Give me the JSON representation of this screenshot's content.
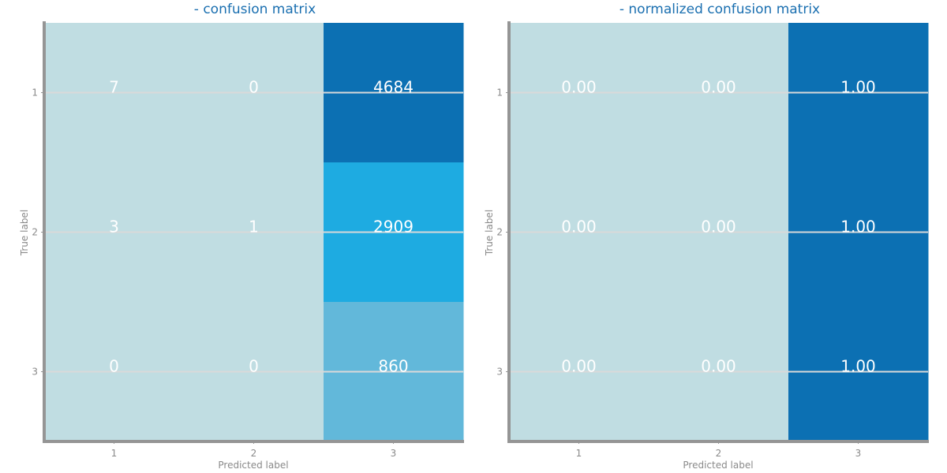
{
  "chart_data": [
    {
      "type": "heatmap",
      "title": "- confusion matrix",
      "xlabel": "Predicted label",
      "ylabel": "True label",
      "x_tick_labels": [
        "1",
        "2",
        "3"
      ],
      "y_tick_labels": [
        "1",
        "2",
        "3"
      ],
      "values": [
        [
          7,
          0,
          4684
        ],
        [
          3,
          1,
          2909
        ],
        [
          0,
          0,
          860
        ]
      ],
      "cell_labels": [
        [
          "7",
          "0",
          "4684"
        ],
        [
          "3",
          "1",
          "2909"
        ],
        [
          "0",
          "0",
          "860"
        ]
      ],
      "grid": true
    },
    {
      "type": "heatmap",
      "title": "- normalized confusion matrix",
      "xlabel": "Predicted label",
      "ylabel": "True label",
      "x_tick_labels": [
        "1",
        "2",
        "3"
      ],
      "y_tick_labels": [
        "1",
        "2",
        "3"
      ],
      "values": [
        [
          0.0,
          0.0,
          1.0
        ],
        [
          0.0,
          0.0,
          1.0
        ],
        [
          0.0,
          0.0,
          1.0
        ]
      ],
      "cell_labels": [
        [
          "0.00",
          "0.00",
          "1.00"
        ],
        [
          "0.00",
          "0.00",
          "1.00"
        ],
        [
          "0.00",
          "0.00",
          "1.00"
        ]
      ],
      "grid": true
    }
  ],
  "colors": {
    "low": "#c0dde2",
    "mid_low": "#62b8da",
    "mid_high": "#1eabe1",
    "high": "#0c70b3",
    "axis": "#959595",
    "grid": "#d9d9d9"
  }
}
